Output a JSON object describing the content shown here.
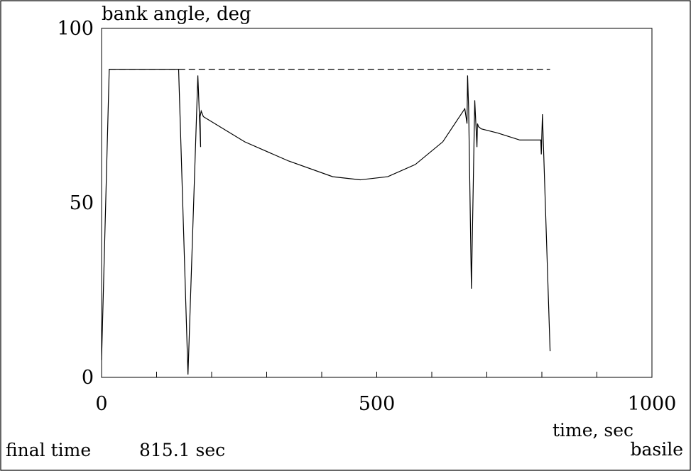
{
  "chart_data": {
    "type": "line",
    "ylabel": "bank angle, deg",
    "xlabel": "time, sec",
    "xlim": [
      0,
      1000
    ],
    "ylim": [
      0,
      100
    ],
    "x_tick_labels": [
      {
        "value": 0,
        "label": "0"
      },
      {
        "value": 500,
        "label": "500"
      },
      {
        "value": 1000,
        "label": "1000"
      }
    ],
    "y_tick_labels": [
      {
        "value": 0,
        "label": "0"
      },
      {
        "value": 50,
        "label": "50"
      },
      {
        "value": 100,
        "label": "100"
      }
    ],
    "x_minor_tick_step": 100,
    "grid": false,
    "series": [
      {
        "style": "solid",
        "color": "#000000",
        "x": [
          0,
          14,
          140,
          157,
          175,
          180,
          179,
          181,
          185,
          260,
          340,
          420,
          470,
          520,
          570,
          620,
          660,
          664,
          665,
          667,
          672,
          678,
          682,
          683,
          685,
          690,
          720,
          760,
          798,
          799,
          801,
          815
        ],
        "y": [
          5,
          88.3,
          88.3,
          0.8,
          86.5,
          66,
          74.7,
          76.3,
          74.7,
          67.5,
          62,
          57.5,
          56.6,
          57.5,
          61,
          67.5,
          77,
          72.7,
          86.5,
          77,
          25.4,
          79.4,
          66,
          72.7,
          71.8,
          71.2,
          70,
          68,
          68,
          63.9,
          75.4,
          7.5
        ]
      },
      {
        "style": "dashed",
        "color": "#000000",
        "x": [
          14,
          815
        ],
        "y": [
          88.3,
          88.3
        ]
      }
    ]
  },
  "footer": {
    "final_time_label": "final time",
    "final_time_value": "815.1 sec",
    "author": "basile"
  }
}
